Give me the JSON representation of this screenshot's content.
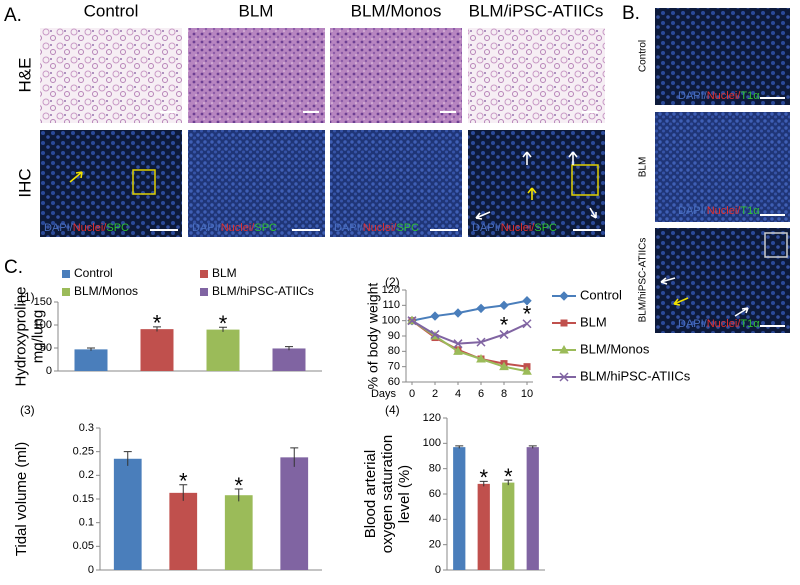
{
  "panel_a": {
    "label": "A.",
    "columns": [
      "Control",
      "BLM",
      "BLM/Monos",
      "BLM/iPSC-ATIICs"
    ],
    "rows": [
      "H&E",
      "IHC"
    ],
    "caption": [
      "DAPI/",
      "Nuclei/",
      "SPC"
    ]
  },
  "panel_b": {
    "label": "B.",
    "rows": [
      "Control",
      "BLM",
      "BLM/hiPSC-ATIICs"
    ],
    "caption": [
      "DAPI/",
      "Nuclei/",
      "T1α"
    ]
  },
  "panel_c": {
    "label": "C."
  },
  "chart_data": [
    {
      "type": "bar",
      "panel": "(1)",
      "ylabel": [
        "Hydroxyproline",
        "mg/lung"
      ],
      "series": [
        {
          "name": "Control",
          "color": "#4a7ebb",
          "values": [
            47
          ],
          "errors": [
            3
          ]
        },
        {
          "name": "BLM",
          "color": "#c0504d",
          "values": [
            91
          ],
          "errors": [
            5
          ]
        },
        {
          "name": "BLM/Monos",
          "color": "#9bbb59",
          "values": [
            90
          ],
          "errors": [
            5
          ]
        },
        {
          "name": "BLM/hiPSC-ATIICs",
          "color": "#8064a2",
          "values": [
            49
          ],
          "errors": [
            4
          ]
        }
      ],
      "annotations": [
        {
          "text": "*",
          "series": 1
        },
        {
          "text": "*",
          "series": 2
        }
      ],
      "ylim": [
        0,
        150
      ],
      "yticks": [
        0,
        50,
        100,
        150
      ]
    },
    {
      "type": "line",
      "panel": "(2)",
      "ylabel": "% of body weight",
      "xlabel": "Days",
      "x": [
        0,
        2,
        4,
        6,
        8,
        10
      ],
      "series": [
        {
          "name": "Control",
          "color": "#4a7ebb",
          "marker": "diamond",
          "values": [
            100,
            103,
            105,
            108,
            110,
            113
          ]
        },
        {
          "name": "BLM",
          "color": "#c0504d",
          "marker": "square",
          "values": [
            100,
            89,
            81,
            75,
            72,
            70
          ]
        },
        {
          "name": "BLM/Monos",
          "color": "#9bbb59",
          "marker": "triangle",
          "values": [
            100,
            90,
            80,
            75,
            70,
            67
          ]
        },
        {
          "name": "BLM/hiPSC-ATIICs",
          "color": "#8064a2",
          "marker": "cross",
          "values": [
            100,
            91,
            85,
            86,
            91,
            98
          ]
        }
      ],
      "annotations": [
        {
          "text": "*",
          "x": 8
        },
        {
          "text": "*",
          "x": 10
        }
      ],
      "xlim": [
        0,
        10
      ],
      "xticks": [
        0,
        2,
        4,
        6,
        8,
        10
      ],
      "ylim": [
        60,
        120
      ],
      "yticks": [
        60,
        70,
        80,
        90,
        100,
        110,
        120
      ]
    },
    {
      "type": "bar",
      "panel": "(3)",
      "ylabel": [
        "Tidal volume (ml)"
      ],
      "series": [
        {
          "color": "#4a7ebb",
          "values": [
            0.235
          ],
          "errors": [
            0.015
          ]
        },
        {
          "color": "#c0504d",
          "values": [
            0.163
          ],
          "errors": [
            0.017
          ]
        },
        {
          "color": "#9bbb59",
          "values": [
            0.158
          ],
          "errors": [
            0.013
          ]
        },
        {
          "color": "#8064a2",
          "values": [
            0.238
          ],
          "errors": [
            0.02
          ]
        }
      ],
      "annotations": [
        {
          "text": "*",
          "series": 1
        },
        {
          "text": "*",
          "series": 2
        }
      ],
      "ylim": [
        0,
        0.3
      ],
      "yticks": [
        0,
        0.05,
        0.1,
        0.15,
        0.2,
        0.25,
        0.3
      ]
    },
    {
      "type": "bar",
      "panel": "(4)",
      "ylabel": [
        "Blood arterial",
        "oxygen saturation",
        "level (%)"
      ],
      "series": [
        {
          "color": "#4a7ebb",
          "values": [
            97
          ],
          "errors": [
            1
          ]
        },
        {
          "color": "#c0504d",
          "values": [
            68
          ],
          "errors": [
            2
          ]
        },
        {
          "color": "#9bbb59",
          "values": [
            69
          ],
          "errors": [
            2
          ]
        },
        {
          "color": "#8064a2",
          "values": [
            97
          ],
          "errors": [
            1
          ]
        }
      ],
      "annotations": [
        {
          "text": "*",
          "series": 1
        },
        {
          "text": "*",
          "series": 2
        }
      ],
      "ylim": [
        0,
        120
      ],
      "yticks": [
        0,
        20,
        40,
        60,
        80,
        100,
        120
      ]
    }
  ]
}
